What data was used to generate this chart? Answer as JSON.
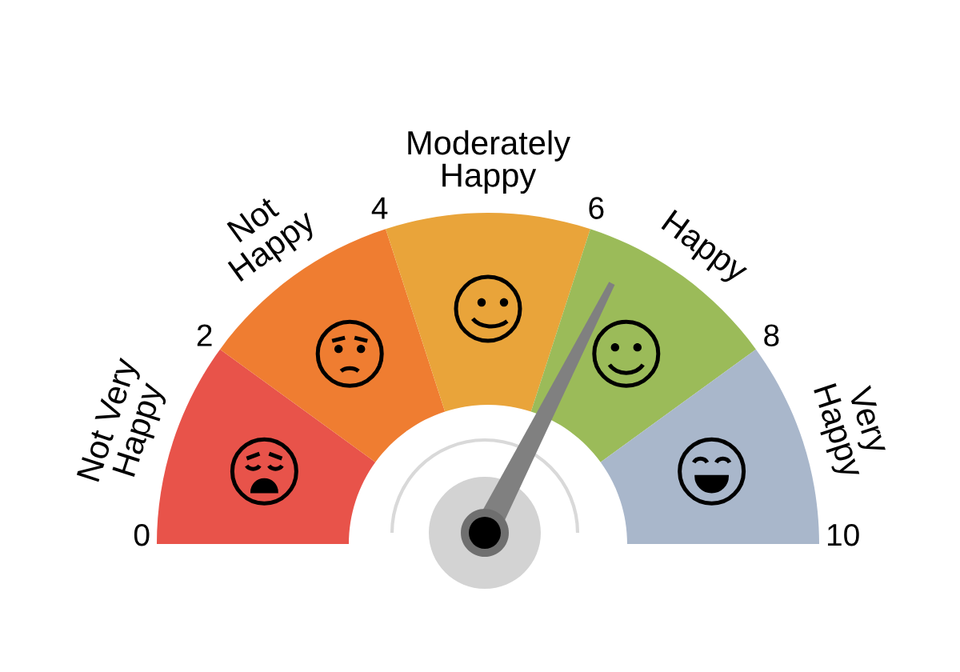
{
  "chart_data": {
    "type": "donut",
    "categories": [
      "Not Very\nHappy",
      "Not\nHappy",
      "Moderately\nHappy",
      "Happy",
      "Very\nHappy"
    ],
    "values": [
      20,
      20,
      20,
      20,
      20
    ],
    "colors": [
      "#e8534a",
      "#ef7d31",
      "#e9a43a",
      "#9bbb59",
      "#a9b7cb"
    ],
    "annotations": [
      "0",
      "2",
      "4",
      "6",
      "8",
      "10"
    ],
    "needle": "Happy"
  }
}
